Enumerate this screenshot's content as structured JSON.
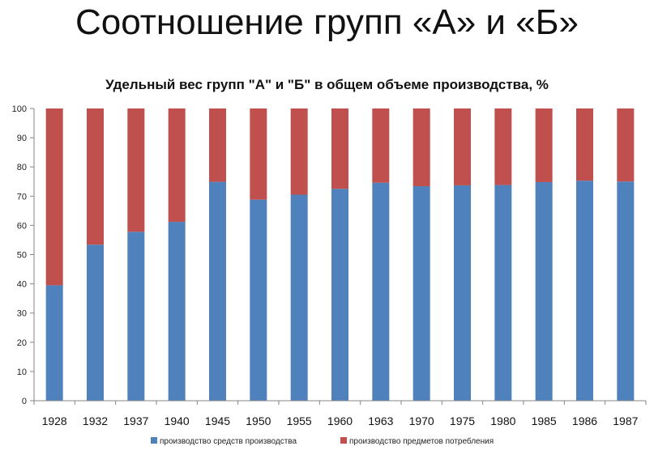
{
  "page": {
    "title": "Соотношение групп «А» и «Б»"
  },
  "chart_data": {
    "type": "bar",
    "stacked": true,
    "title": "Удельный вес групп \"А\" и \"Б\" в общем объеме производства, %",
    "xlabel": "",
    "ylabel": "",
    "ylim": [
      0,
      100
    ],
    "yticks": [
      0,
      10,
      20,
      30,
      40,
      50,
      60,
      70,
      80,
      90,
      100
    ],
    "grid": false,
    "legend": "bottom",
    "categories": [
      "1928",
      "1932",
      "1937",
      "1940",
      "1945",
      "1950",
      "1955",
      "1960",
      "1963",
      "1970",
      "1975",
      "1980",
      "1985",
      "1986",
      "1987"
    ],
    "series": [
      {
        "name": "производство средств производства",
        "color": "#4f81bd",
        "values": [
          39.5,
          53.4,
          57.8,
          61.2,
          74.9,
          68.8,
          70.5,
          72.5,
          74.6,
          73.4,
          73.7,
          73.8,
          74.8,
          75.3,
          75.0
        ]
      },
      {
        "name": "производство предметов потребления",
        "color": "#c0504d",
        "values": [
          60.5,
          46.6,
          42.2,
          38.8,
          25.1,
          31.2,
          29.5,
          27.5,
          25.4,
          26.6,
          26.3,
          26.2,
          25.2,
          24.7,
          25.0
        ]
      }
    ]
  }
}
